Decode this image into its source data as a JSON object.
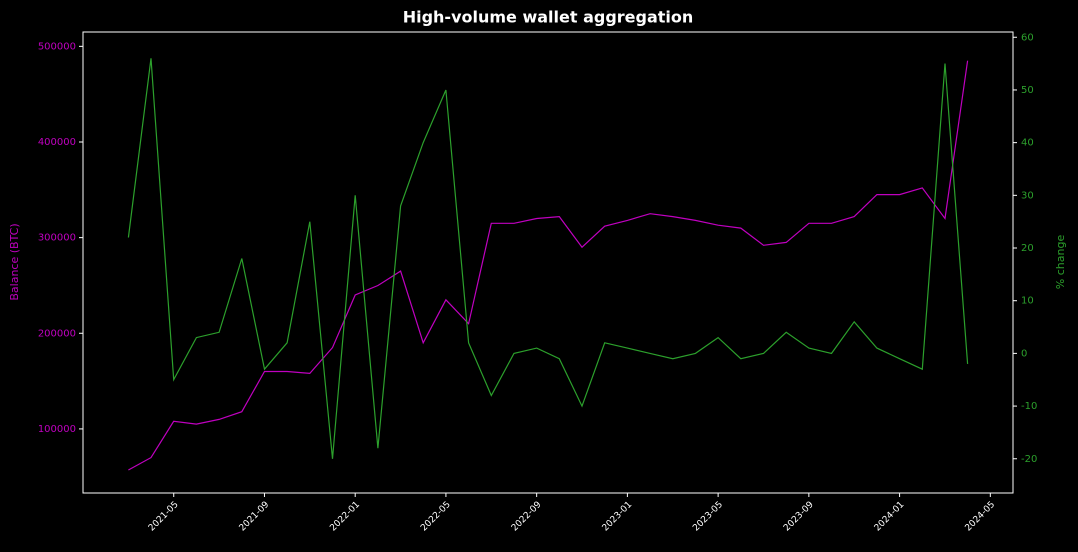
{
  "chart_data": {
    "type": "line",
    "title": "High-volume wallet aggregation",
    "ylabel": "Balance (BTC)",
    "y2label": "% change",
    "x": [
      "2021-03",
      "2021-04",
      "2021-05",
      "2021-06",
      "2021-07",
      "2021-08",
      "2021-09",
      "2021-10",
      "2021-11",
      "2021-12",
      "2022-01",
      "2022-02",
      "2022-03",
      "2022-04",
      "2022-05",
      "2022-06",
      "2022-07",
      "2022-08",
      "2022-09",
      "2022-10",
      "2022-11",
      "2022-12",
      "2023-01",
      "2023-02",
      "2023-03",
      "2023-04",
      "2023-05",
      "2023-06",
      "2023-07",
      "2023-08",
      "2023-09",
      "2023-10",
      "2023-11",
      "2023-12",
      "2024-01",
      "2024-02",
      "2024-03",
      "2024-04"
    ],
    "series": [
      {
        "color": "#c000c0",
        "axis": "y",
        "values": [
          57000,
          70000,
          108000,
          105000,
          110000,
          118000,
          160000,
          160000,
          158000,
          185000,
          240000,
          250000,
          265000,
          190000,
          235000,
          210000,
          315000,
          315000,
          320000,
          322000,
          290000,
          312000,
          318000,
          325000,
          322000,
          318000,
          313000,
          310000,
          292000,
          295000,
          315000,
          315000,
          322000,
          345000,
          345000,
          352000,
          320000,
          485000
        ]
      },
      {
        "color": "#2ca02c",
        "axis": "y2",
        "values": [
          22,
          56,
          -5,
          3,
          4,
          18,
          -3,
          2,
          25,
          -20,
          30,
          -18,
          28,
          40,
          50,
          2,
          -8,
          0,
          1,
          -1,
          -10,
          2,
          1,
          0,
          -1,
          0,
          3,
          -1,
          0,
          4,
          1,
          0,
          6,
          1,
          -1,
          -3,
          55,
          -2
        ]
      }
    ],
    "xlim": [
      "2021-01",
      "2024-06"
    ],
    "xticks": [
      "2021-05",
      "2021-09",
      "2022-01",
      "2022-05",
      "2022-09",
      "2023-01",
      "2023-05",
      "2023-09",
      "2024-01",
      "2024-05"
    ],
    "ylim": [
      33000,
      515000
    ],
    "yticks": [
      100000,
      200000,
      300000,
      400000,
      500000
    ],
    "y2lim": [
      -26.5,
      61
    ],
    "y2ticks": [
      -20,
      -10,
      0,
      10,
      20,
      30,
      40,
      50,
      60
    ]
  }
}
